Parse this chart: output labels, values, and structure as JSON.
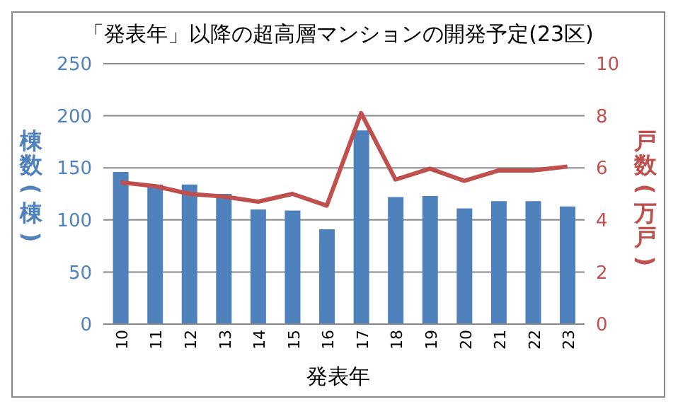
{
  "chart_data": {
    "type": "bar",
    "title": "「発表年」以降の超高層マンションの開発予定(23区)",
    "xlabel": "発表年",
    "ylabel": "棟数(棟)",
    "y2label": "戸数(万戸)",
    "categories": [
      "10",
      "11",
      "12",
      "13",
      "14",
      "15",
      "16",
      "17",
      "18",
      "19",
      "20",
      "21",
      "22",
      "23"
    ],
    "series": [
      {
        "color": "#4f81bd",
        "values": [
          146,
          134,
          134,
          125,
          110,
          109,
          91,
          186,
          122,
          123,
          111,
          118,
          118,
          113
        ]
      },
      {
        "type": "line",
        "axis": "y2",
        "color": "#c0504d",
        "values": [
          5.44,
          5.3,
          5.0,
          4.9,
          4.7,
          5.0,
          4.55,
          8.1,
          5.55,
          5.97,
          5.5,
          5.9,
          5.9,
          6.05
        ]
      }
    ],
    "ylim": [
      0,
      250
    ],
    "yticks": [
      0,
      50,
      100,
      150,
      200,
      250
    ],
    "y2lim": [
      0,
      10
    ],
    "y2ticks": [
      0,
      2,
      4,
      6,
      8,
      10
    ],
    "grid": "y",
    "legend": false,
    "marker": "none",
    "line_style": "solid"
  }
}
